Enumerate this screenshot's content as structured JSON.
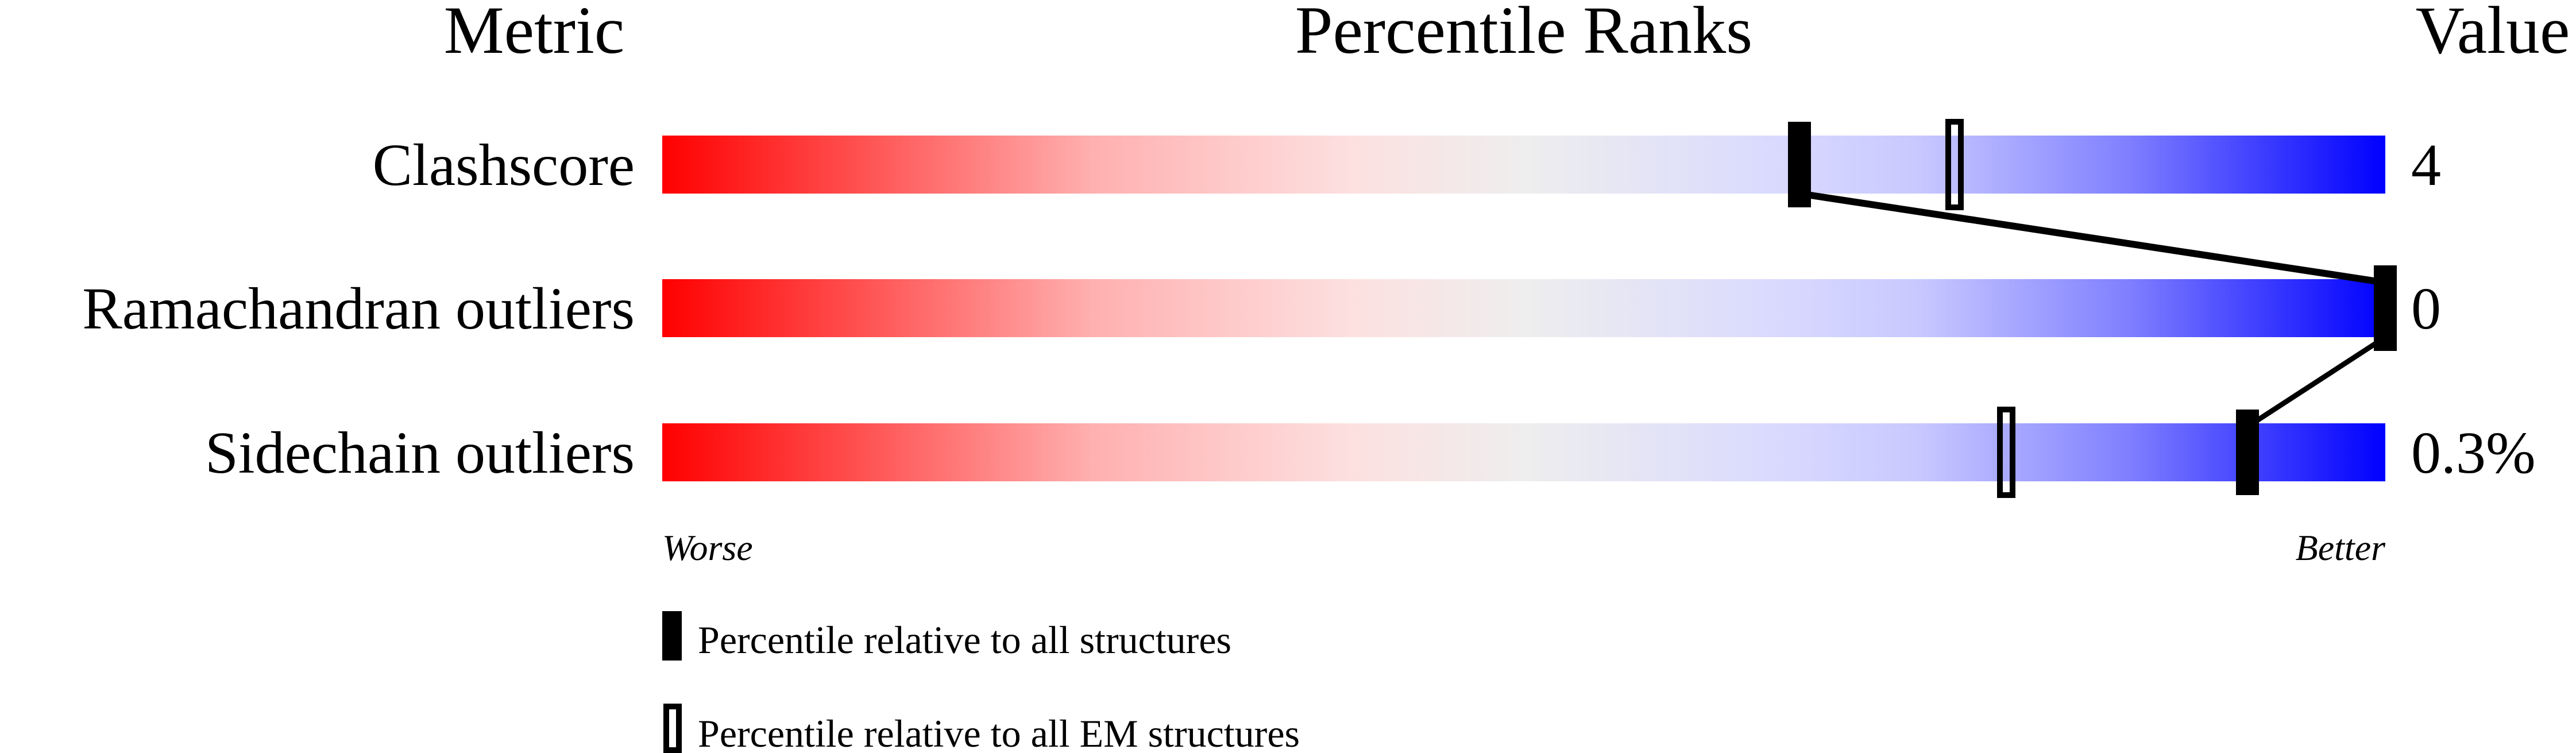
{
  "chart_data": {
    "type": "percentile-slider",
    "headers": {
      "metric": "Metric",
      "ranks": "Percentile Ranks",
      "value": "Value"
    },
    "xlim": [
      0,
      100
    ],
    "gradient_colors": [
      "#ff0000",
      "#eeeeee",
      "#d9d9ff",
      "#0000ff"
    ],
    "rows": [
      {
        "metric": "Clashscore",
        "value": "4",
        "percentile_all": 66,
        "percentile_em": 75
      },
      {
        "metric": "Ramachandran outliers",
        "value": "0",
        "percentile_all": 100,
        "percentile_em": null
      },
      {
        "metric": "Sidechain outliers",
        "value": "0.3%",
        "percentile_all": 92,
        "percentile_em": 78
      }
    ],
    "axis_labels": {
      "left": "Worse",
      "right": "Better"
    },
    "legend": [
      {
        "marker": "filled",
        "label": "Percentile relative to all structures"
      },
      {
        "marker": "open",
        "label": "Percentile relative to all EM structures"
      }
    ]
  }
}
